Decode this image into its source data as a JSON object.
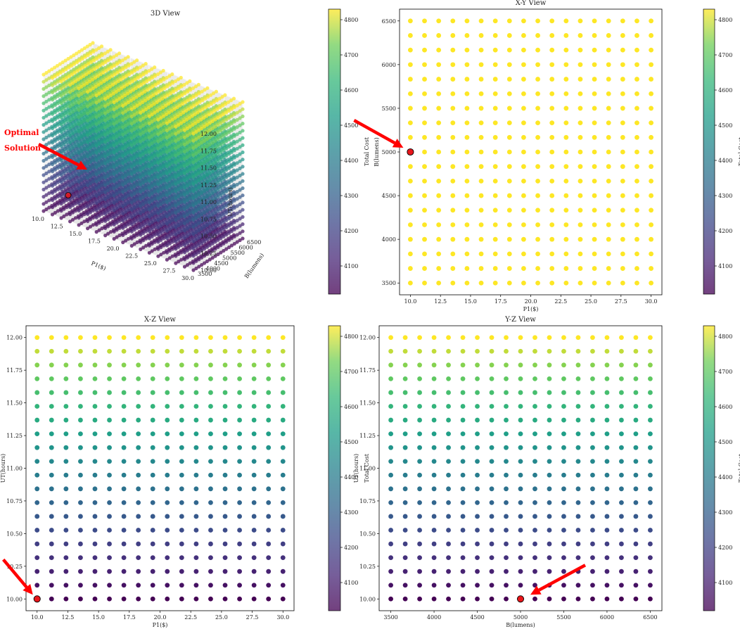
{
  "colors": {
    "optimal": "#e8161b",
    "arrow": "#ff0000"
  },
  "colormap": "viridis",
  "annotation": {
    "line1": "Optimal",
    "line2": "Solution"
  },
  "colorbar": {
    "label": "Total Cost",
    "ticks": [
      4100,
      4200,
      4300,
      4400,
      4500,
      4600,
      4700,
      4800
    ]
  },
  "chart_data": [
    {
      "type": "scatter",
      "view": "3d",
      "title": "3D View",
      "xlabel": "P1($)",
      "ylabel": "B(lumens)",
      "zlabel": "UT(hours)",
      "xlim": [
        10,
        30
      ],
      "ylim": [
        3500,
        6500
      ],
      "zlim": [
        10,
        12
      ],
      "xticks": [
        10.0,
        12.5,
        15.0,
        17.5,
        20.0,
        22.5,
        25.0,
        27.5,
        30.0
      ],
      "yticks": [
        3500,
        4000,
        4500,
        5000,
        5500,
        6000,
        6500
      ],
      "zticks": [
        10.0,
        10.25,
        10.5,
        10.75,
        11.0,
        11.25,
        11.5,
        11.75,
        12.0
      ],
      "grid": {
        "x": {
          "start": 10,
          "stop": 30,
          "count": 18
        },
        "y": {
          "start": 3500,
          "stop": 6500,
          "count": 19
        },
        "z": {
          "start": 10,
          "stop": 12,
          "count": 20
        }
      },
      "color_by": "UT",
      "cost_range": [
        4020,
        4830
      ],
      "optimal": {
        "x": 10,
        "y": 5000,
        "z": 10
      }
    },
    {
      "type": "scatter",
      "view": "xy",
      "title": "X-Y View",
      "xlabel": "P1($)",
      "ylabel": "B(lumens)",
      "xlim": [
        10,
        30
      ],
      "ylim": [
        3500,
        6500
      ],
      "xticks": [
        10.0,
        12.5,
        15.0,
        17.5,
        20.0,
        22.5,
        25.0,
        27.5,
        30.0
      ],
      "yticks": [
        3500,
        4000,
        4500,
        5000,
        5500,
        6000,
        6500
      ],
      "grid": {
        "x": {
          "start": 10,
          "stop": 30,
          "count": 18
        },
        "y": {
          "start": 3500,
          "stop": 6500,
          "count": 19
        }
      },
      "point_cost": 4830,
      "optimal": {
        "x": 10,
        "y": 5000
      }
    },
    {
      "type": "scatter",
      "view": "xz",
      "title": "X-Z View",
      "xlabel": "P1($)",
      "ylabel": "UT(hours)",
      "xlim": [
        10,
        30
      ],
      "ylim": [
        10,
        12
      ],
      "xticks": [
        10.0,
        12.5,
        15.0,
        17.5,
        20.0,
        22.5,
        25.0,
        27.5,
        30.0
      ],
      "yticks": [
        10.0,
        10.25,
        10.5,
        10.75,
        11.0,
        11.25,
        11.5,
        11.75,
        12.0
      ],
      "grid": {
        "x": {
          "start": 10,
          "stop": 30,
          "count": 18
        },
        "y": {
          "start": 10,
          "stop": 12,
          "count": 20
        }
      },
      "color_by": "y",
      "cost_range": [
        4020,
        4830
      ],
      "optimal": {
        "x": 10,
        "y": 10
      }
    },
    {
      "type": "scatter",
      "view": "yz",
      "title": "Y-Z View",
      "xlabel": "B(lumens)",
      "ylabel": "UT(hours)",
      "xlim": [
        3500,
        6500
      ],
      "ylim": [
        10,
        12
      ],
      "xticks": [
        3500,
        4000,
        4500,
        5000,
        5500,
        6000,
        6500
      ],
      "yticks": [
        10.0,
        10.25,
        10.5,
        10.75,
        11.0,
        11.25,
        11.5,
        11.75,
        12.0
      ],
      "grid": {
        "x": {
          "start": 3500,
          "stop": 6500,
          "count": 19
        },
        "y": {
          "start": 10,
          "stop": 12,
          "count": 20
        }
      },
      "color_by": "y",
      "cost_range": [
        4020,
        4830
      ],
      "optimal": {
        "x": 5000,
        "y": 10
      }
    }
  ]
}
